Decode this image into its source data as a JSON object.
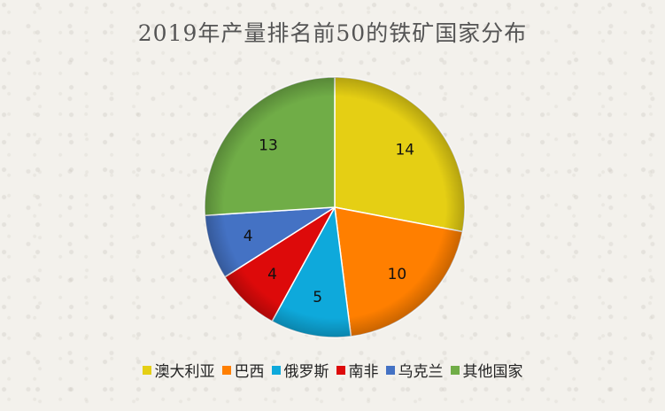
{
  "chart_data": {
    "type": "pie",
    "title": "2019年产量排名前50的铁矿国家分布",
    "categories": [
      "澳大利亚",
      "巴西",
      "俄罗斯",
      "南非",
      "乌克兰",
      "其他国家"
    ],
    "values": [
      14,
      10,
      5,
      4,
      4,
      13
    ],
    "colors": [
      "#e5cf14",
      "#ff7f00",
      "#0ea9db",
      "#dd0a0a",
      "#4472c4",
      "#70ad47"
    ],
    "data_labels": [
      "14",
      "10",
      "5",
      "4",
      "4",
      "13"
    ],
    "legend_position": "bottom"
  }
}
